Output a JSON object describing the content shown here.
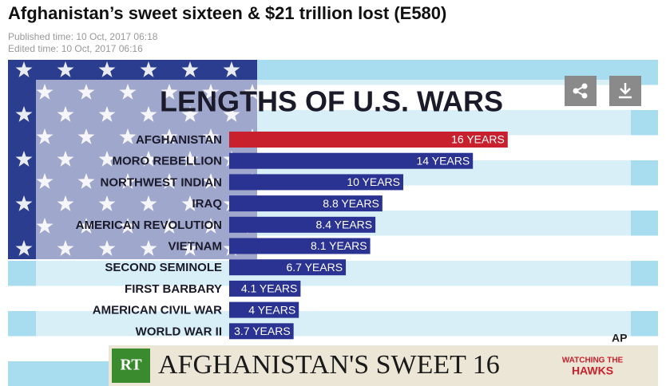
{
  "page": {
    "headline": "Afghanistan’s sweet sixteen & $21 trillion lost (E580)",
    "published": "Published time: 10 Oct, 2017 06:18",
    "edited": "Edited time: 10 Oct, 2017 06:16",
    "banner_logo": "RT",
    "banner_text": "AFGHANISTAN'S SWEET 16",
    "show_name": [
      "WATCHING THE",
      "HAWKS"
    ]
  },
  "chart_data": {
    "type": "hbar",
    "title": "LENGTHS OF U.S. WARS",
    "source": "AP",
    "categories": [
      "AFGHANISTAN",
      "MORO REBELLION",
      "NORTHWEST INDIAN",
      "IRAQ",
      "AMERICAN REVOLUTION",
      "VIETNAM",
      "SECOND SEMINOLE",
      "FIRST BARBARY",
      "AMERICAN CIVIL WAR",
      "WORLD WAR II"
    ],
    "values": [
      16,
      14,
      10,
      8.8,
      8.4,
      8.1,
      6.7,
      4.1,
      4,
      3.7
    ],
    "value_labels": [
      "16 YEARS",
      "14 YEARS",
      "10 YEARS",
      "8.8 YEARS",
      "8.4 YEARS",
      "8.1 YEARS",
      "6.7 YEARS",
      "4.1 YEARS",
      "4 YEARS",
      "3.7 YEARS"
    ],
    "colors": [
      "#c8202c",
      "#2b3392",
      "#2b3392",
      "#2b3392",
      "#2b3392",
      "#2b3392",
      "#2b3392",
      "#2b3392",
      "#2b3392",
      "#2b3392"
    ]
  }
}
